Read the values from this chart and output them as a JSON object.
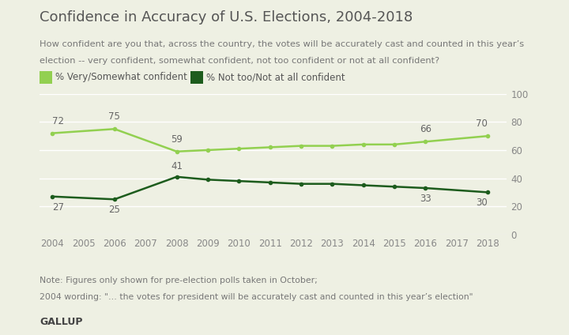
{
  "title": "Confidence in Accuracy of U.S. Elections, 2004-2018",
  "subtitle_line1": "How confident are you that, across the country, the votes will be accurately cast and counted in this year’s",
  "subtitle_line2": "election -- very confident, somewhat confident, not too confident or not at all confident?",
  "background_color": "#eef0e3",
  "years": [
    2004,
    2006,
    2008,
    2009,
    2010,
    2011,
    2012,
    2013,
    2014,
    2015,
    2016,
    2018
  ],
  "very_somewhat": [
    72,
    75,
    59,
    60,
    61,
    62,
    63,
    63,
    64,
    64,
    66,
    70
  ],
  "not_too": [
    27,
    25,
    41,
    39,
    38,
    37,
    36,
    36,
    35,
    34,
    33,
    30
  ],
  "line1_color": "#92d050",
  "line2_color": "#1d5c1d",
  "line1_label": "% Very/Somewhat confident",
  "line2_label": "% Not too/Not at all confident",
  "yticks": [
    0,
    20,
    40,
    60,
    80,
    100
  ],
  "xticks": [
    2004,
    2005,
    2006,
    2007,
    2008,
    2009,
    2010,
    2011,
    2012,
    2013,
    2014,
    2015,
    2016,
    2017,
    2018
  ],
  "note_line1": "Note: Figures only shown for pre-election polls taken in October;",
  "note_line2": "2004 wording: \"… the votes for president will be accurately cast and counted in this year’s election\"",
  "source": "GALLUP",
  "labeled_points_1": [
    [
      2004,
      72
    ],
    [
      2006,
      75
    ],
    [
      2008,
      59
    ],
    [
      2016,
      66
    ],
    [
      2018,
      70
    ]
  ],
  "labeled_points_2": [
    [
      2004,
      27
    ],
    [
      2006,
      25
    ],
    [
      2008,
      41
    ],
    [
      2016,
      33
    ],
    [
      2018,
      30
    ]
  ]
}
